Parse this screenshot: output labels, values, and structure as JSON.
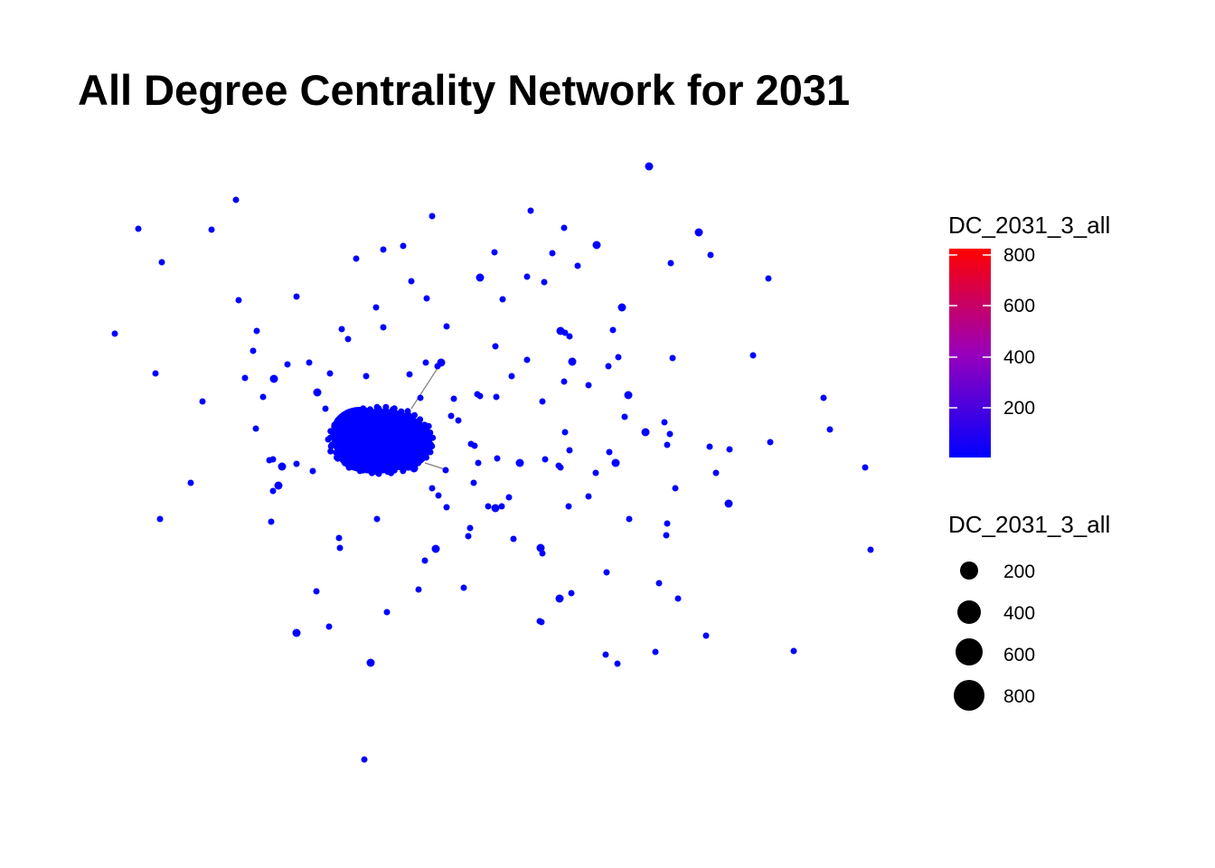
{
  "title": "All Degree Centrality Network for 2031",
  "legend": {
    "color_title": "DC_2031_3_all",
    "color_ticks": [
      "800",
      "600",
      "400",
      "200"
    ],
    "size_title": "DC_2031_3_all",
    "size_items": [
      "200",
      "400",
      "600",
      "800"
    ],
    "color_low": "#0000FF",
    "color_high": "#FF0000"
  },
  "node_color": "#0000FF",
  "edge_color": "#808080"
}
